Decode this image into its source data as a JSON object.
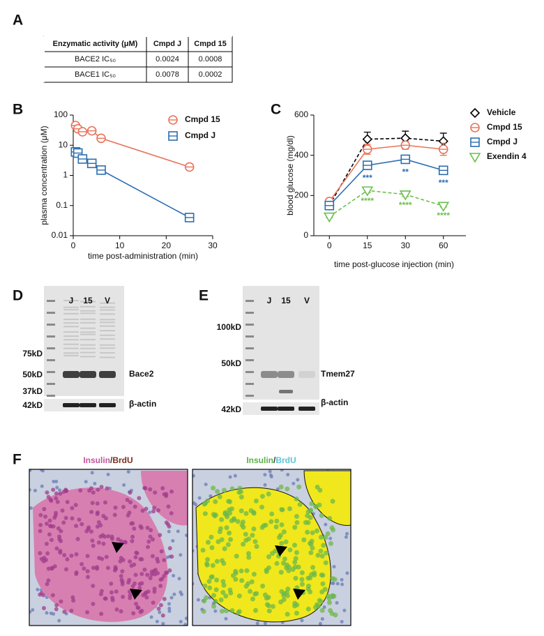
{
  "panel_labels": [
    "A",
    "B",
    "C",
    "D",
    "E",
    "F"
  ],
  "table": {
    "header": [
      "Enzymatic activity (μM)",
      "Cmpd J",
      "Cmpd 15"
    ],
    "rows": [
      [
        "BACE2 IC₅₀",
        0.0024,
        0.0008
      ],
      [
        "BACE1 IC₅₀",
        0.0078,
        0.0002
      ]
    ]
  },
  "chart_data": [
    {
      "type": "line",
      "x": [
        0.5,
        1,
        2,
        4,
        6,
        25
      ],
      "xlim": [
        0,
        30
      ],
      "xticks": [
        0,
        10,
        20,
        30
      ],
      "ylim": [
        0.01,
        100
      ],
      "yticks": [
        0.01,
        0.1,
        1,
        10,
        100
      ],
      "log_y": true,
      "xlabel": "time post-administration (min)",
      "ylabel": "plasma concentration (μM)",
      "series": [
        {
          "name": "Cmpd 15",
          "color": "#e8735a",
          "marker": "circle",
          "values": [
            45,
            35,
            28,
            30,
            17,
            1.9
          ]
        },
        {
          "name": "Cmpd J",
          "color": "#2a6db0",
          "marker": "square",
          "values": [
            6,
            5.5,
            3.5,
            2.5,
            1.5,
            0.04
          ]
        }
      ]
    },
    {
      "type": "line",
      "categories": [
        "0",
        "15",
        "30",
        "60"
      ],
      "ylim": [
        0,
        600
      ],
      "yticks": [
        0,
        200,
        400,
        600
      ],
      "xlabel": "time post-glucose injection (min)",
      "ylabel": "blood glucose (mg/dl)",
      "series": [
        {
          "name": "Vehicle",
          "color": "#000000",
          "marker": "diamond",
          "dashed": true,
          "values": [
            150,
            480,
            485,
            470
          ],
          "errors": [
            10,
            35,
            35,
            40
          ]
        },
        {
          "name": "Cmpd 15",
          "color": "#e8735a",
          "marker": "circle",
          "values": [
            170,
            430,
            450,
            430
          ],
          "errors": [
            10,
            25,
            20,
            30
          ]
        },
        {
          "name": "Cmpd J",
          "color": "#2a6db0",
          "marker": "square",
          "values": [
            150,
            350,
            380,
            325
          ],
          "errors": [
            10,
            20,
            20,
            20
          ],
          "sig_labels": [
            null,
            "***",
            "**",
            "***"
          ]
        },
        {
          "name": "Exendin 4",
          "color": "#6abf4b",
          "marker": "triangle",
          "dashed": true,
          "values": [
            95,
            225,
            205,
            148
          ],
          "errors": [
            5,
            10,
            10,
            5
          ],
          "sig_labels": [
            null,
            "****",
            "****",
            "****"
          ]
        }
      ]
    }
  ],
  "blots": [
    {
      "lanes": [
        "J",
        "15",
        "V"
      ],
      "markers": [
        "75kD",
        "50kD",
        "37kD",
        "42kD"
      ],
      "bands": [
        "Bace2",
        "β-actin"
      ]
    },
    {
      "lanes": [
        "J",
        "15",
        "V"
      ],
      "markers": [
        "100kD",
        "50kD",
        "42kD"
      ],
      "bands": [
        "Tmem27",
        "β-actin"
      ]
    }
  ],
  "micrographs": [
    {
      "title": [
        "Insulin",
        "/",
        "BrdU"
      ]
    },
    {
      "title": [
        "Insulin",
        "/",
        "BrdU"
      ]
    }
  ]
}
